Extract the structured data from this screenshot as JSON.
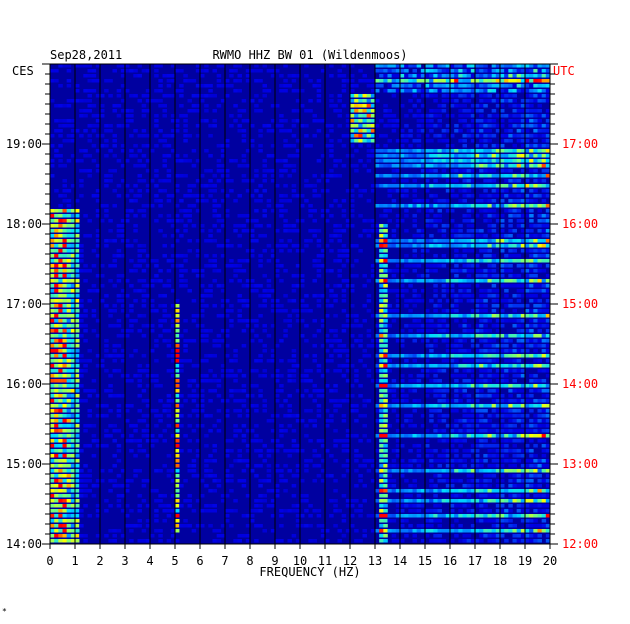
{
  "chart_data": {
    "type": "heatmap",
    "date": "Sep28,2011",
    "title": "RWMO HHZ BW 01 (Wildenmoos)",
    "left_tz": "CES",
    "right_tz": "UTC",
    "xlabel": "FREQUENCY (HZ)",
    "x_ticks": [
      "0",
      "1",
      "2",
      "3",
      "4",
      "5",
      "6",
      "7",
      "8",
      "9",
      "10",
      "11",
      "12",
      "13",
      "14",
      "15",
      "16",
      "17",
      "18",
      "19",
      "20"
    ],
    "xlim": [
      0,
      20
    ],
    "left_ticks": [
      "14:00",
      "15:00",
      "16:00",
      "17:00",
      "18:00",
      "19:00"
    ],
    "right_ticks": [
      "12:00",
      "13:00",
      "14:00",
      "15:00",
      "16:00",
      "17:00"
    ],
    "ylim_hours_ces": [
      14.0,
      20.0
    ],
    "colors": {
      "background": "#0000a0",
      "low": "#0000c8",
      "mid": "#00b4ff",
      "high": "#ffff00",
      "peak": "#ff0000",
      "grid": "#000000",
      "utc_text": "#ff0000"
    },
    "features": [
      {
        "name": "broadband low-frequency energy",
        "freq_range_hz": [
          0.2,
          1.2
        ],
        "time_range_ces": [
          "14:00",
          "18:10"
        ]
      },
      {
        "name": "narrow line near 5 Hz",
        "freq_hz": 5.1,
        "time_range_ces": [
          "14:10",
          "17:00"
        ]
      },
      {
        "name": "narrow line near 13.3 Hz",
        "freq_hz": 13.3,
        "time_range_ces": [
          "14:00",
          "18:00"
        ]
      },
      {
        "name": "scattered high-frequency bursts",
        "freq_range_hz": [
          13,
          20
        ],
        "time_range_ces": [
          "14:00",
          "20:00"
        ]
      }
    ],
    "marker": "*"
  }
}
